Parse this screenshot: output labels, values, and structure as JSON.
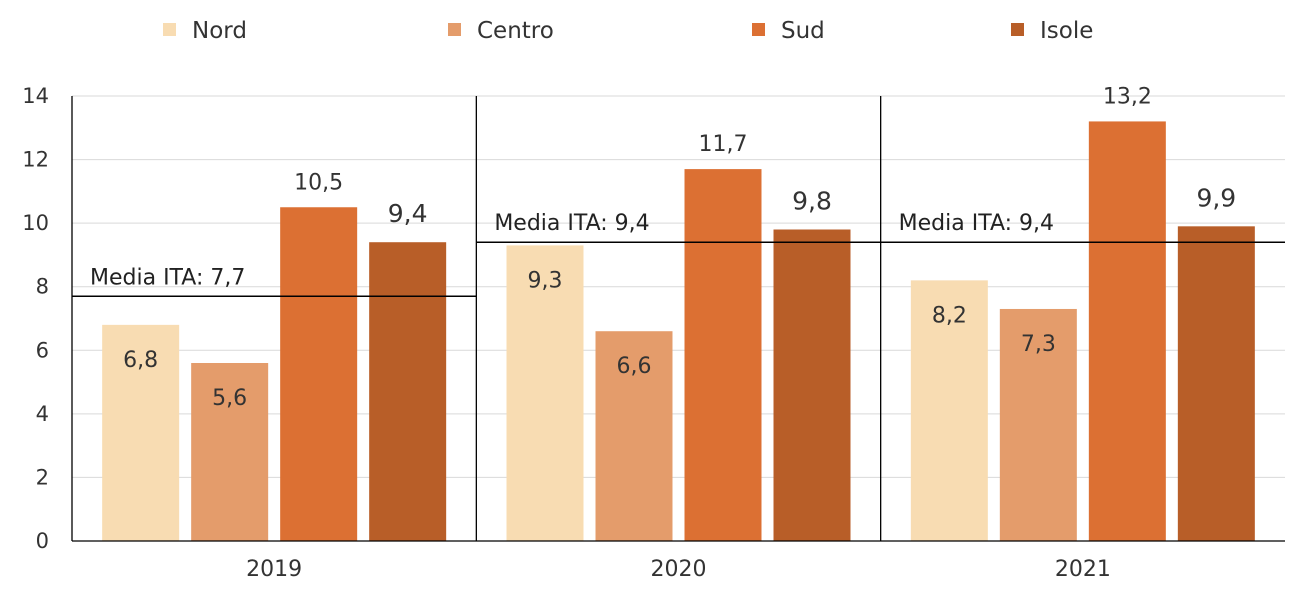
{
  "chart_data": {
    "type": "bar",
    "categories": [
      "2019",
      "2020",
      "2021"
    ],
    "series": [
      {
        "name": "Nord",
        "color": "#F8DCB2",
        "values": [
          6.8,
          9.3,
          8.2
        ],
        "labels": [
          "6,8",
          "9,3",
          "8,2"
        ]
      },
      {
        "name": "Centro",
        "color": "#E49C6B",
        "values": [
          5.6,
          6.6,
          7.3
        ],
        "labels": [
          "5,6",
          "6,6",
          "7,3"
        ]
      },
      {
        "name": "Sud",
        "color": "#DC7033",
        "values": [
          10.5,
          11.7,
          13.2
        ],
        "labels": [
          "10,5",
          "11,7",
          "13,2"
        ]
      },
      {
        "name": "Isole",
        "color": "#B85E28",
        "values": [
          9.4,
          9.8,
          9.9
        ],
        "labels": [
          "9,4",
          "9,8",
          "9,9"
        ]
      }
    ],
    "averages": [
      {
        "value": 7.7,
        "label": "Media ITA: 7,7"
      },
      {
        "value": 9.4,
        "label": "Media ITA: 9,4"
      },
      {
        "value": 9.4,
        "label": "Media ITA: 9,4"
      }
    ],
    "yticks": [
      "0",
      "2",
      "4",
      "6",
      "8",
      "10",
      "12",
      "14"
    ],
    "ylim": [
      0,
      14
    ],
    "grid": true,
    "legend_position": "top"
  }
}
